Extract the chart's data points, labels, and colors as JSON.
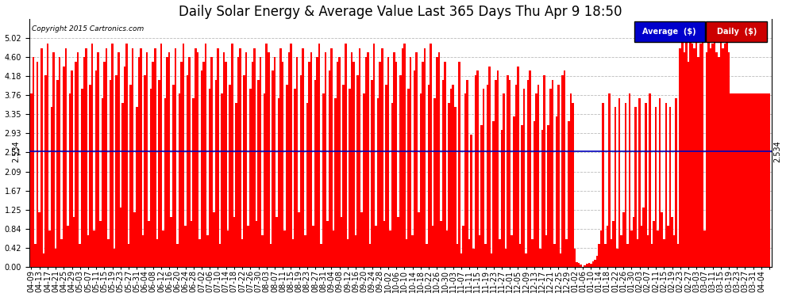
{
  "title": "Daily Solar Energy & Average Value Last 365 Days Thu Apr 9 18:50",
  "copyright": "Copyright 2015 Cartronics.com",
  "average_value": 2.534,
  "average_label": "2.534",
  "ylim": [
    0.0,
    5.44
  ],
  "yticks_left": [
    0.0,
    0.42,
    0.84,
    1.25,
    1.67,
    2.09,
    2.51,
    2.93,
    3.35,
    3.76,
    4.18,
    4.6,
    5.02
  ],
  "bar_color": "#FF0000",
  "avg_line_color": "#0000BB",
  "bg_color": "#FFFFFF",
  "plot_bg_color": "#FFFFFF",
  "grid_color": "#BBBBBB",
  "title_fontsize": 12,
  "tick_fontsize": 7,
  "legend_avg_bg": "#0000CC",
  "legend_daily_bg": "#CC0000",
  "legend_text_color": "#FFFFFF",
  "x_tick_every": 4,
  "x_label_dates": [
    "04-09",
    "04-13",
    "04-17",
    "04-21",
    "04-25",
    "04-29",
    "05-03",
    "05-07",
    "05-11",
    "05-15",
    "05-19",
    "05-23",
    "05-27",
    "05-31",
    "06-04",
    "06-08",
    "06-12",
    "06-16",
    "06-20",
    "06-24",
    "06-28",
    "07-02",
    "07-06",
    "07-10",
    "07-14",
    "07-18",
    "07-22",
    "07-26",
    "07-30",
    "08-03",
    "08-07",
    "08-11",
    "08-15",
    "08-19",
    "08-23",
    "08-27",
    "08-31",
    "09-04",
    "09-08",
    "09-12",
    "09-16",
    "09-20",
    "09-24",
    "09-28",
    "10-02",
    "10-06",
    "10-10",
    "10-14",
    "10-18",
    "10-22",
    "10-26",
    "10-30",
    "11-03",
    "11-07",
    "11-11",
    "11-15",
    "11-19",
    "11-23",
    "11-27",
    "12-01",
    "12-05",
    "12-09",
    "12-13",
    "12-17",
    "12-21",
    "12-25",
    "12-29",
    "01-02",
    "01-06",
    "01-10",
    "01-14",
    "01-18",
    "01-22",
    "01-26",
    "01-30",
    "02-03",
    "02-07",
    "02-11",
    "02-15",
    "02-19",
    "02-23",
    "02-27",
    "03-03",
    "03-07",
    "03-11",
    "03-15",
    "03-19",
    "03-23",
    "03-27",
    "03-31",
    "04-04"
  ],
  "bar_values": [
    3.8,
    4.6,
    0.5,
    4.5,
    1.2,
    4.8,
    0.3,
    4.2,
    4.9,
    0.8,
    3.5,
    4.7,
    0.4,
    4.1,
    4.6,
    0.6,
    4.4,
    4.8,
    0.9,
    3.8,
    4.3,
    1.1,
    4.5,
    4.7,
    0.5,
    3.9,
    4.6,
    4.8,
    0.7,
    4.0,
    4.9,
    0.8,
    4.3,
    4.7,
    1.0,
    3.7,
    4.5,
    4.8,
    0.6,
    4.1,
    4.9,
    0.4,
    4.2,
    4.7,
    1.3,
    3.6,
    4.4,
    4.9,
    0.5,
    4.0,
    4.8,
    1.2,
    3.5,
    4.6,
    4.8,
    0.7,
    4.2,
    4.7,
    1.0,
    3.9,
    4.5,
    4.8,
    0.6,
    4.1,
    4.9,
    0.8,
    3.7,
    4.6,
    4.7,
    1.1,
    4.0,
    4.8,
    0.5,
    3.8,
    4.5,
    4.9,
    0.9,
    4.2,
    4.6,
    1.0,
    3.7,
    4.8,
    4.7,
    0.6,
    4.3,
    4.5,
    4.9,
    0.7,
    3.9,
    4.6,
    1.2,
    4.1,
    4.8,
    0.5,
    3.8,
    4.7,
    4.5,
    0.8,
    4.0,
    4.9,
    1.1,
    3.6,
    4.6,
    4.8,
    0.6,
    4.2,
    4.7,
    0.9,
    3.9,
    4.5,
    4.8,
    1.0,
    4.1,
    4.6,
    0.7,
    3.8,
    4.9,
    4.7,
    0.5,
    4.3,
    4.6,
    1.1,
    3.7,
    4.8,
    4.5,
    0.8,
    4.0,
    4.7,
    4.9,
    0.6,
    3.9,
    4.6,
    1.2,
    4.2,
    4.8,
    0.7,
    3.6,
    4.5,
    4.7,
    0.9,
    4.1,
    4.6,
    4.9,
    0.5,
    3.8,
    4.7,
    1.0,
    4.3,
    4.8,
    0.8,
    3.7,
    4.5,
    4.6,
    1.1,
    4.0,
    4.9,
    0.6,
    3.9,
    4.7,
    4.5,
    0.7,
    4.2,
    4.8,
    1.2,
    3.8,
    4.6,
    4.7,
    0.5,
    4.1,
    4.9,
    0.9,
    3.7,
    4.5,
    4.8,
    1.0,
    4.0,
    4.6,
    0.8,
    3.6,
    4.7,
    4.5,
    1.1,
    4.2,
    4.8,
    4.9,
    0.6,
    3.9,
    4.6,
    0.7,
    4.3,
    4.7,
    1.2,
    3.8,
    4.5,
    4.8,
    0.5,
    4.0,
    4.9,
    0.9,
    3.7,
    4.6,
    4.7,
    1.0,
    4.1,
    4.5,
    0.8,
    3.6,
    3.9,
    4.0,
    3.5,
    0.5,
    4.5,
    0.3,
    0.9,
    3.8,
    4.1,
    0.6,
    2.9,
    0.4,
    4.2,
    4.3,
    0.7,
    3.1,
    3.9,
    0.5,
    4.0,
    4.4,
    0.3,
    3.2,
    4.1,
    4.3,
    0.6,
    3.0,
    3.8,
    0.4,
    4.2,
    4.1,
    0.7,
    3.3,
    4.0,
    4.4,
    0.5,
    3.1,
    3.9,
    0.3,
    4.1,
    4.3,
    0.6,
    3.2,
    3.8,
    4.0,
    0.4,
    3.0,
    4.2,
    0.7,
    3.1,
    3.9,
    4.1,
    0.5,
    3.3,
    4.0,
    0.3,
    4.2,
    4.3,
    0.6,
    3.2,
    3.8,
    3.6,
    0.4,
    0.1,
    0.08,
    0.05,
    0.0,
    0.03,
    0.06,
    0.09,
    0.07,
    0.12,
    0.15,
    0.25,
    0.5,
    0.8,
    3.6,
    0.5,
    0.9,
    3.8,
    0.6,
    1.0,
    3.5,
    0.4,
    3.7,
    0.7,
    1.2,
    3.6,
    0.5,
    3.8,
    0.8,
    1.1,
    3.5,
    0.6,
    3.7,
    0.9,
    1.3,
    3.6,
    0.7,
    3.8,
    0.5,
    1.0,
    3.5,
    0.8,
    3.7,
    1.2,
    0.6,
    3.6,
    0.9,
    3.5,
    1.1,
    0.7,
    3.7,
    0.5,
    4.8,
    5.0,
    4.7,
    5.1,
    4.5,
    5.0,
    4.9,
    4.8,
    5.1,
    4.6,
    4.9,
    5.0,
    0.8,
    4.7,
    5.1,
    4.8,
    4.9,
    5.0,
    4.7,
    4.6,
    5.1,
    4.8,
    4.9,
    5.0,
    4.7
  ]
}
